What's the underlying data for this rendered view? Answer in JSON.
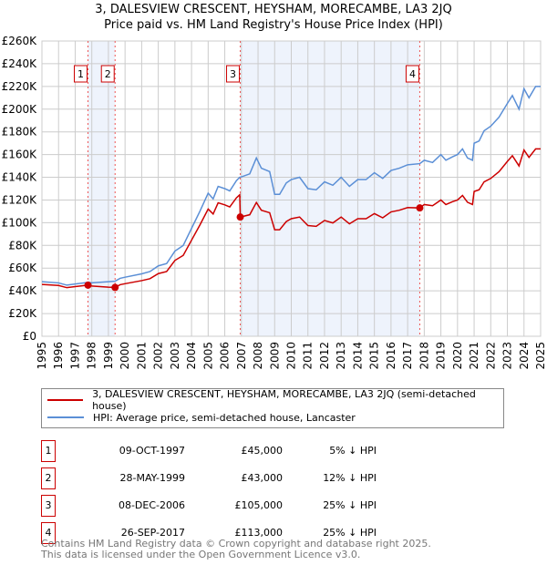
{
  "chart_data": {
    "type": "line",
    "title": "3, DALESVIEW CRESCENT, HEYSHAM, MORECAMBE, LA3 2JQ",
    "subtitle": "Price paid vs. HM Land Registry's House Price Index (HPI)",
    "xlim": [
      1995,
      2025
    ],
    "ylim": [
      0,
      260000
    ],
    "yticks": [
      0,
      20000,
      40000,
      60000,
      80000,
      100000,
      120000,
      140000,
      160000,
      180000,
      200000,
      220000,
      240000,
      260000
    ],
    "ytick_labels": [
      "£0",
      "£20K",
      "£40K",
      "£60K",
      "£80K",
      "£100K",
      "£120K",
      "£140K",
      "£160K",
      "£180K",
      "£200K",
      "£220K",
      "£240K",
      "£260K"
    ],
    "xticks": [
      "1995",
      "1996",
      "1997",
      "1998",
      "1999",
      "2000",
      "2001",
      "2002",
      "2003",
      "2004",
      "2005",
      "2006",
      "2007",
      "2008",
      "2009",
      "2010",
      "2011",
      "2012",
      "2013",
      "2014",
      "2015",
      "2016",
      "2017",
      "2018",
      "2019",
      "2020",
      "2021",
      "2022",
      "2023",
      "2024",
      "2025"
    ],
    "grid": true,
    "x": [
      1995,
      1996,
      1996.5,
      1997,
      1997.77,
      1998,
      1999,
      1999.4,
      1999.7,
      2000,
      2001,
      2001.5,
      2002,
      2002.5,
      2003,
      2003.5,
      2004,
      2004.5,
      2005,
      2005.3,
      2005.6,
      2006,
      2006.3,
      2006.7,
      2006.9,
      2006.93,
      2007.5,
      2007.9,
      2008.2,
      2008.7,
      2009,
      2009.3,
      2009.7,
      2010,
      2010.5,
      2011,
      2011.5,
      2012,
      2012.5,
      2013,
      2013.5,
      2014,
      2014.5,
      2015,
      2015.5,
      2016,
      2016.5,
      2017,
      2017.73,
      2018,
      2018.5,
      2019,
      2019.3,
      2019.7,
      2020,
      2020.3,
      2020.6,
      2020.9,
      2021,
      2021.3,
      2021.6,
      2022,
      2022.5,
      2023,
      2023.3,
      2023.7,
      2024,
      2024.3,
      2024.7,
      2025
    ],
    "series": [
      {
        "name": "3, DALESVIEW CRESCENT, HEYSHAM, MORECAMBE, LA3 2JQ (semi-detached house)",
        "color": "#cc0000",
        "values": [
          45600,
          44700,
          42800,
          43700,
          45000,
          44200,
          43200,
          43000,
          45400,
          46300,
          49000,
          50700,
          55200,
          57000,
          66800,
          71200,
          84600,
          97900,
          112000,
          107700,
          117500,
          115700,
          113900,
          121900,
          124600,
          105000,
          107000,
          117800,
          111000,
          108800,
          93800,
          93800,
          101000,
          103500,
          105000,
          97500,
          96800,
          102000,
          99800,
          105000,
          99000,
          103500,
          103500,
          108000,
          104300,
          109500,
          111000,
          113300,
          113000,
          116000,
          115000,
          120000,
          116000,
          118500,
          120000,
          124000,
          118000,
          116000,
          127500,
          129000,
          136000,
          139000,
          145000,
          154000,
          159000,
          150000,
          164000,
          157500,
          165000,
          165000
        ]
      },
      {
        "name": "HPI: Average price, semi-detached house, Lancaster",
        "color": "#5b8fd6",
        "values": [
          48000,
          47000,
          45000,
          46000,
          47400,
          47000,
          48000,
          48500,
          51000,
          52000,
          55000,
          57000,
          62000,
          64000,
          75000,
          80000,
          95000,
          110000,
          126000,
          121000,
          132000,
          130000,
          128000,
          137000,
          140000,
          140000,
          143000,
          157000,
          148000,
          145000,
          125000,
          125000,
          135000,
          138000,
          140000,
          130000,
          129000,
          136000,
          133000,
          140000,
          132000,
          138000,
          138000,
          144000,
          139000,
          146000,
          148000,
          151000,
          152000,
          155000,
          153000,
          160000,
          155000,
          158000,
          160000,
          165000,
          157000,
          155000,
          170000,
          172000,
          181000,
          185000,
          193000,
          205000,
          212000,
          200000,
          218000,
          210000,
          220000,
          220000
        ]
      }
    ],
    "sales": [
      {
        "n": "1",
        "x": 1997.77,
        "date": "09-OCT-1997",
        "price": 45000,
        "price_label": "£45,000",
        "hpi": "5% ↓ HPI"
      },
      {
        "n": "2",
        "x": 1999.4,
        "date": "28-MAY-1999",
        "price": 43000,
        "price_label": "£43,000",
        "hpi": "12% ↓ HPI"
      },
      {
        "n": "3",
        "x": 2006.93,
        "date": "08-DEC-2006",
        "price": 105000,
        "price_label": "£105,000",
        "hpi": "25% ↓ HPI"
      },
      {
        "n": "4",
        "x": 2017.73,
        "date": "26-SEP-2017",
        "price": 113000,
        "price_label": "£113,000",
        "hpi": "25% ↓ HPI"
      }
    ],
    "shaded_ranges": [
      [
        1997.77,
        1999.4
      ],
      [
        2006.93,
        2017.73
      ]
    ],
    "legend_placement": "below"
  },
  "footer": {
    "line1": "Contains HM Land Registry data © Crown copyright and database right 2025.",
    "line2": "This data is licensed under the Open Government Licence v3.0."
  }
}
